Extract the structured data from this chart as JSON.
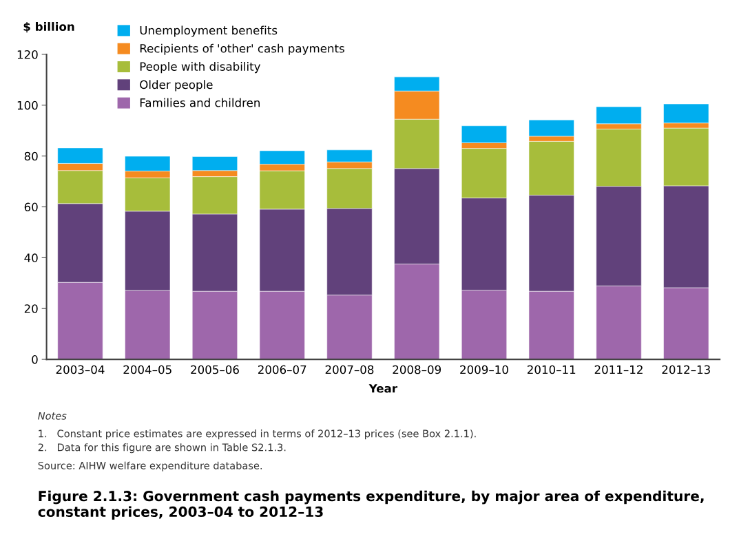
{
  "chart_data": {
    "type": "bar",
    "stacked": true,
    "title": "Figure 2.1.3: Government cash payments expenditure, by major area of expenditure, constant prices, 2003–04 to 2012–13",
    "ylabel": "$ billion",
    "xlabel": "Year",
    "categories": [
      "2003–04",
      "2004–05",
      "2005–06",
      "2006–07",
      "2007–08",
      "2008–09",
      "2009–10",
      "2010–11",
      "2011–12",
      "2012–13"
    ],
    "series": [
      {
        "name": "Families and children",
        "color": "#9e67ab",
        "values": [
          30.3,
          27.1,
          26.8,
          26.8,
          25.3,
          37.5,
          27.2,
          26.8,
          28.9,
          28.2
        ]
      },
      {
        "name": "Older people",
        "color": "#61417b",
        "values": [
          31.0,
          31.2,
          30.4,
          32.3,
          34.1,
          37.6,
          36.3,
          37.8,
          39.2,
          40.1
        ]
      },
      {
        "name": "People with disability",
        "color": "#a7bd3b",
        "values": [
          13.0,
          13.1,
          14.7,
          15.1,
          15.7,
          19.4,
          19.5,
          21.2,
          22.5,
          22.7
        ]
      },
      {
        "name": "Recipients of 'other' cash payments",
        "color": "#f58b20",
        "values": [
          2.8,
          2.7,
          2.4,
          2.6,
          2.6,
          11.1,
          2.2,
          2.0,
          2.1,
          2.0
        ]
      },
      {
        "name": "Unemployment benefits",
        "color": "#00aeef",
        "values": [
          6.1,
          5.8,
          5.5,
          5.3,
          4.7,
          5.5,
          6.7,
          6.4,
          6.7,
          7.5
        ]
      }
    ],
    "ylim": [
      0,
      120
    ],
    "yticks": [
      0,
      20,
      40,
      60,
      80,
      100,
      120
    ],
    "grid": false,
    "legend": "top left",
    "annotations": [
      "Notes",
      "1.   Constant price estimates are expressed in terms of 2012–13 prices (see Box 2.1.1).",
      "2.   Data for this figure are shown in Table S2.1.3.",
      "Source: AIHW welfare expenditure database."
    ]
  }
}
